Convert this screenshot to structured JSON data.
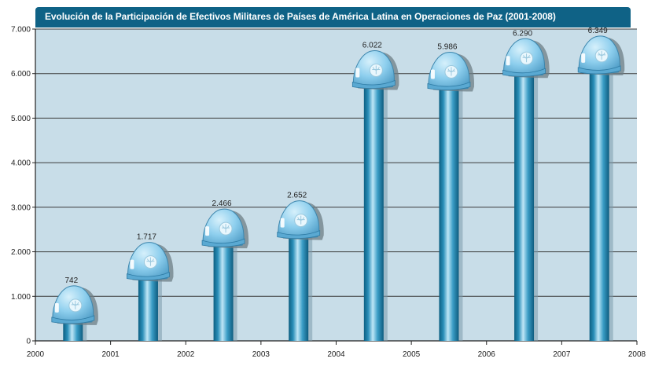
{
  "chart_data": {
    "type": "bar",
    "title": "Evolución de la Participación de Efectivos Militares de Países de América Latina en Operaciones de Paz (2001-2008)",
    "x_tick_labels": [
      "2000",
      "2001",
      "2002",
      "2003",
      "2004",
      "2005",
      "2006",
      "2007",
      "2008"
    ],
    "y_tick_labels": [
      "0",
      "1.000",
      "2.000",
      "3.000",
      "4.000",
      "5.000",
      "6.000",
      "7.000"
    ],
    "ylim": [
      0,
      7000
    ],
    "xlim": [
      2000,
      2008
    ],
    "grid": true,
    "bars": [
      {
        "x": 2000.5,
        "value": 742,
        "label": "742"
      },
      {
        "x": 2001.5,
        "value": 1717,
        "label": "1.717"
      },
      {
        "x": 2002.5,
        "value": 2466,
        "label": "2.466"
      },
      {
        "x": 2003.5,
        "value": 2652,
        "label": "2.652"
      },
      {
        "x": 2004.5,
        "value": 6022,
        "label": "6.022"
      },
      {
        "x": 2005.5,
        "value": 5986,
        "label": "5.986"
      },
      {
        "x": 2006.5,
        "value": 6290,
        "label": "6.290"
      },
      {
        "x": 2007.5,
        "value": 6349,
        "label": "6.349"
      }
    ],
    "colors": {
      "title_bar": "#0f6286",
      "plot_background": "#c8dde8",
      "bar": "#2a8fb9",
      "helmet": "#7ec6ea"
    },
    "bar_marker_icon": "un-helmet-icon"
  }
}
